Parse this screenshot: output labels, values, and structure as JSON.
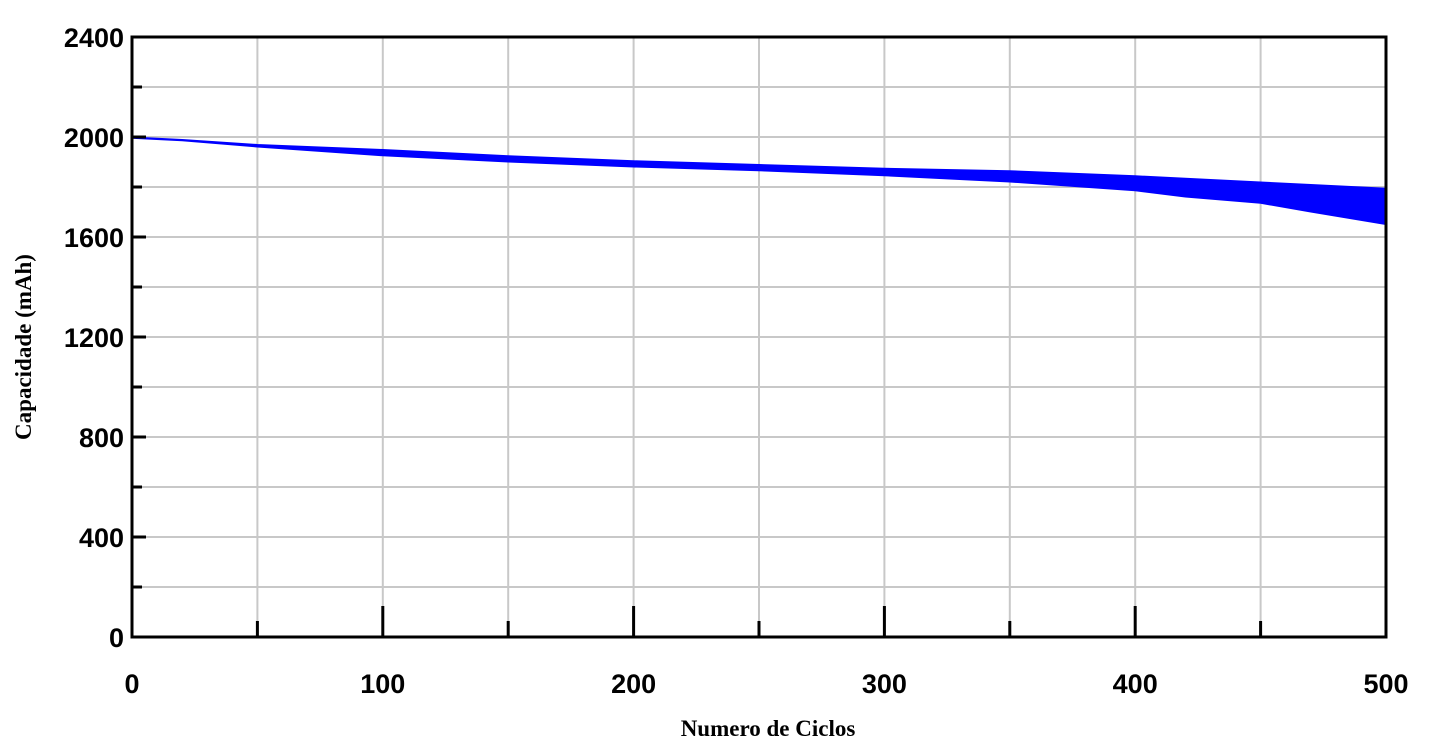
{
  "chart_data": {
    "type": "area",
    "title": "",
    "xlabel": "Numero de Ciclos",
    "ylabel": "Capacidade (mAh)",
    "xlim": [
      0,
      500
    ],
    "ylim": [
      0,
      2400
    ],
    "xticks": [
      0,
      100,
      200,
      300,
      400,
      500
    ],
    "yticks": [
      0,
      400,
      800,
      1200,
      1600,
      2000,
      2400
    ],
    "grid": true,
    "fill_color": "#0000ff",
    "series": [
      {
        "x": [
          0,
          20,
          50,
          100,
          150,
          200,
          250,
          300,
          350,
          400,
          420,
          450,
          470,
          500
        ],
        "upper": [
          2000,
          1990,
          1970,
          1950,
          1925,
          1905,
          1890,
          1875,
          1865,
          1845,
          1835,
          1820,
          1810,
          1795
        ],
        "lower": [
          1995,
          1985,
          1960,
          1925,
          1900,
          1880,
          1865,
          1845,
          1820,
          1785,
          1760,
          1735,
          1700,
          1650
        ]
      }
    ]
  }
}
